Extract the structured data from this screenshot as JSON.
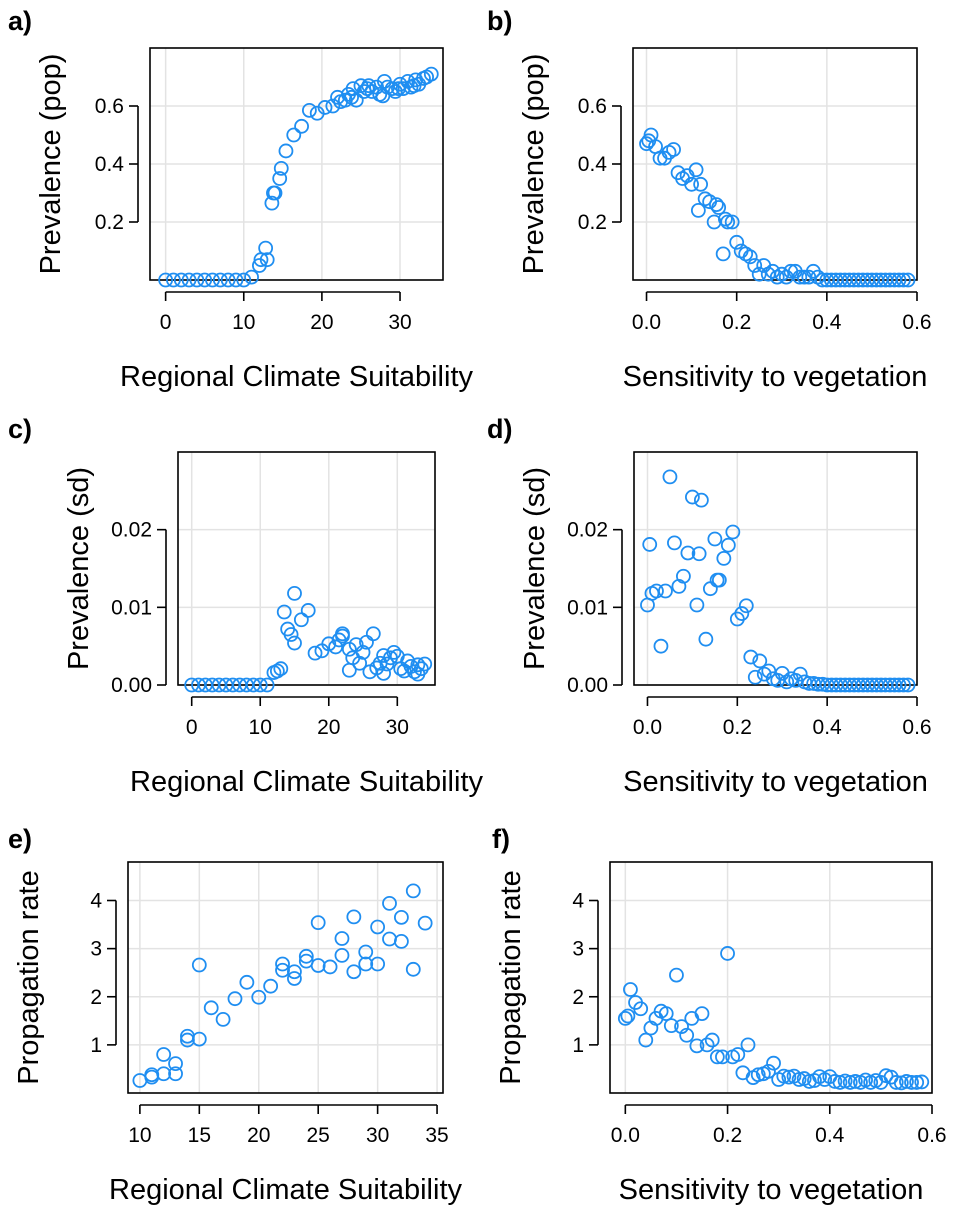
{
  "style": {
    "point_color": "#1f8ef1",
    "grid_color": "#e3e3e3",
    "axis_color": "#000000"
  },
  "chart_data": [
    {
      "type": "scatter",
      "panel_label": "a)",
      "xlabel": "Regional Climate Suitability",
      "ylabel": "Prevalence (pop)",
      "xlim": [
        -2,
        35.5
      ],
      "ylim": [
        0,
        0.8
      ],
      "xticks": [
        0,
        10,
        20,
        30
      ],
      "yticks": [
        0.2,
        0.4,
        0.6
      ],
      "ytick_labels": [
        "0.2",
        "0.4",
        "0.6"
      ],
      "grid": true,
      "x": [
        0,
        1,
        2,
        3,
        4,
        5,
        6,
        7,
        8,
        9,
        10,
        11,
        12,
        12.2,
        12.8,
        13,
        13.6,
        13.8,
        14,
        14.6,
        14.8,
        15.4,
        16.4,
        17.4,
        18.4,
        19.4,
        20.4,
        21.4,
        22,
        22.4,
        23,
        23.4,
        23.8,
        24,
        24.4,
        25,
        25.4,
        25.8,
        26,
        26.4,
        27,
        27.4,
        27.8,
        28,
        28.4,
        29,
        29.4,
        29.8,
        30,
        30.4,
        31,
        31.4,
        31.8,
        32,
        32.4,
        33,
        33.4,
        34
      ],
      "y": [
        0,
        0,
        0,
        0,
        0,
        0,
        0,
        0,
        0,
        0,
        0,
        0.01,
        0.05,
        0.07,
        0.11,
        0.07,
        0.265,
        0.3,
        0.3,
        0.35,
        0.385,
        0.445,
        0.5,
        0.53,
        0.585,
        0.575,
        0.595,
        0.6,
        0.63,
        0.615,
        0.62,
        0.64,
        0.63,
        0.66,
        0.62,
        0.67,
        0.65,
        0.66,
        0.67,
        0.65,
        0.665,
        0.64,
        0.635,
        0.685,
        0.665,
        0.66,
        0.65,
        0.66,
        0.675,
        0.66,
        0.685,
        0.665,
        0.67,
        0.69,
        0.675,
        0.695,
        0.7,
        0.71
      ]
    },
    {
      "type": "scatter",
      "panel_label": "b)",
      "xlabel": "Sensitivity to vegetation",
      "ylabel": "Prevalence (pop)",
      "xlim": [
        -0.03,
        0.6
      ],
      "ylim": [
        0,
        0.8
      ],
      "xticks": [
        0,
        0.2,
        0.4,
        0.6
      ],
      "xtick_labels": [
        "0.0",
        "0.2",
        "0.4",
        "0.6"
      ],
      "yticks": [
        0.2,
        0.4,
        0.6
      ],
      "ytick_labels": [
        "0.2",
        "0.4",
        "0.6"
      ],
      "grid": true,
      "x": [
        0,
        0.005,
        0.01,
        0.02,
        0.03,
        0.04,
        0.05,
        0.06,
        0.07,
        0.08,
        0.09,
        0.1,
        0.11,
        0.115,
        0.12,
        0.13,
        0.14,
        0.15,
        0.155,
        0.16,
        0.17,
        0.175,
        0.18,
        0.19,
        0.2,
        0.21,
        0.22,
        0.23,
        0.24,
        0.25,
        0.26,
        0.27,
        0.28,
        0.29,
        0.3,
        0.31,
        0.32,
        0.33,
        0.34,
        0.35,
        0.36,
        0.37,
        0.38,
        0.39,
        0.4,
        0.41,
        0.42,
        0.43,
        0.44,
        0.45,
        0.46,
        0.47,
        0.48,
        0.49,
        0.5,
        0.51,
        0.52,
        0.53,
        0.54,
        0.55,
        0.56,
        0.57,
        0.58
      ],
      "y": [
        0.47,
        0.48,
        0.5,
        0.46,
        0.42,
        0.42,
        0.44,
        0.45,
        0.37,
        0.35,
        0.36,
        0.33,
        0.38,
        0.24,
        0.33,
        0.28,
        0.27,
        0.2,
        0.26,
        0.25,
        0.09,
        0.21,
        0.2,
        0.2,
        0.13,
        0.1,
        0.09,
        0.08,
        0.05,
        0.02,
        0.05,
        0.02,
        0.03,
        0.01,
        0.02,
        0.01,
        0.03,
        0.03,
        0.01,
        0.01,
        0.01,
        0.03,
        0.01,
        0,
        0,
        0,
        0,
        0,
        0,
        0,
        0,
        0,
        0,
        0,
        0,
        0,
        0,
        0,
        0,
        0,
        0,
        0,
        0
      ]
    },
    {
      "type": "scatter",
      "panel_label": "c)",
      "xlabel": "Regional Climate Suitability",
      "ylabel": "Prevalence (sd)",
      "xlim": [
        -2,
        35.5
      ],
      "ylim": [
        0,
        0.03
      ],
      "xticks": [
        0,
        10,
        20,
        30
      ],
      "yticks": [
        0,
        0.01,
        0.02
      ],
      "ytick_labels": [
        "0.00",
        "0.01",
        "0.02"
      ],
      "grid": true,
      "x": [
        0,
        1,
        2,
        3,
        4,
        5,
        6,
        7,
        8,
        9,
        10,
        11,
        12,
        12.5,
        13,
        13.5,
        14,
        14.5,
        15,
        15,
        16,
        17,
        18,
        19,
        20,
        21,
        21.5,
        22,
        22,
        23,
        23,
        23.5,
        24,
        24.5,
        25,
        25.5,
        26,
        26.5,
        27,
        27.5,
        28,
        28,
        28.5,
        29,
        29.5,
        30,
        30.5,
        31,
        31.5,
        32,
        32.5,
        33,
        33,
        33.5,
        34
      ],
      "y": [
        0,
        0,
        0,
        0,
        0,
        0,
        0,
        0,
        0,
        0,
        0,
        0,
        0.0016,
        0.0018,
        0.0021,
        0.0094,
        0.0072,
        0.0065,
        0.0118,
        0.0054,
        0.0084,
        0.0096,
        0.0041,
        0.0044,
        0.0053,
        0.0049,
        0.0058,
        0.0063,
        0.0066,
        0.0046,
        0.0019,
        0.0035,
        0.0052,
        0.0028,
        0.0042,
        0.0055,
        0.0017,
        0.0066,
        0.0022,
        0.0028,
        0.0015,
        0.0038,
        0.0027,
        0.0035,
        0.0042,
        0.0037,
        0.0021,
        0.0018,
        0.0031,
        0.0024,
        0.0017,
        0.0026,
        0.0014,
        0.0021,
        0.0027
      ]
    },
    {
      "type": "scatter",
      "panel_label": "d)",
      "xlabel": "Sensitivity to vegetation",
      "ylabel": "Prevalence (sd)",
      "xlim": [
        -0.03,
        0.6
      ],
      "ylim": [
        0,
        0.03
      ],
      "xticks": [
        0,
        0.2,
        0.4,
        0.6
      ],
      "xtick_labels": [
        "0.0",
        "0.2",
        "0.4",
        "0.6"
      ],
      "yticks": [
        0,
        0.01,
        0.02
      ],
      "ytick_labels": [
        "0.00",
        "0.01",
        "0.02"
      ],
      "grid": true,
      "x": [
        0,
        0.005,
        0.01,
        0.02,
        0.03,
        0.04,
        0.05,
        0.06,
        0.07,
        0.08,
        0.09,
        0.1,
        0.11,
        0.115,
        0.12,
        0.13,
        0.14,
        0.15,
        0.155,
        0.16,
        0.17,
        0.18,
        0.19,
        0.2,
        0.21,
        0.22,
        0.23,
        0.24,
        0.25,
        0.26,
        0.27,
        0.28,
        0.29,
        0.3,
        0.31,
        0.32,
        0.33,
        0.34,
        0.35,
        0.36,
        0.37,
        0.38,
        0.39,
        0.4,
        0.41,
        0.42,
        0.43,
        0.44,
        0.45,
        0.46,
        0.47,
        0.48,
        0.49,
        0.5,
        0.51,
        0.52,
        0.53,
        0.54,
        0.55,
        0.56,
        0.57,
        0.58
      ],
      "y": [
        0.0103,
        0.0181,
        0.0118,
        0.0121,
        0.005,
        0.0121,
        0.0268,
        0.0183,
        0.0127,
        0.014,
        0.017,
        0.0242,
        0.0103,
        0.0169,
        0.0238,
        0.0059,
        0.0124,
        0.0188,
        0.0135,
        0.0135,
        0.0163,
        0.018,
        0.0197,
        0.0085,
        0.0092,
        0.0102,
        0.0036,
        0.001,
        0.0031,
        0.0014,
        0.0018,
        0.0008,
        0.0006,
        0.0015,
        0.0004,
        0.0008,
        0.0006,
        0.0014,
        0.0004,
        0.0002,
        0.0002,
        0.0001,
        0.0001,
        0,
        0,
        0,
        0,
        0,
        0,
        0,
        0,
        0,
        0,
        0,
        0,
        0,
        0,
        0,
        0,
        0,
        0,
        0
      ]
    },
    {
      "type": "scatter",
      "panel_label": "e)",
      "xlabel": "Regional Climate Suitability",
      "ylabel": "Propagation rate",
      "xlim": [
        9,
        35.5
      ],
      "ylim": [
        0,
        4.8
      ],
      "xticks": [
        10,
        15,
        20,
        25,
        30,
        35
      ],
      "yticks": [
        1,
        2,
        3,
        4
      ],
      "grid": true,
      "x": [
        10,
        11,
        11,
        12,
        12,
        13,
        13,
        14,
        14,
        15,
        15,
        16,
        17,
        18,
        19,
        20,
        21,
        22,
        22,
        23,
        23,
        24,
        24,
        25,
        25,
        26,
        27,
        27,
        28,
        28,
        29,
        29,
        30,
        30,
        31,
        31,
        32,
        32,
        33,
        33,
        34
      ],
      "y": [
        0.26,
        0.33,
        0.38,
        0.8,
        0.4,
        0.4,
        0.61,
        1.1,
        1.18,
        1.12,
        2.66,
        1.77,
        1.53,
        1.96,
        2.3,
        1.99,
        2.22,
        2.68,
        2.55,
        2.38,
        2.52,
        2.74,
        2.84,
        3.54,
        2.65,
        2.62,
        2.86,
        3.21,
        2.52,
        3.66,
        2.93,
        2.68,
        3.45,
        2.68,
        3.94,
        3.2,
        3.65,
        3.15,
        2.57,
        4.2,
        3.53
      ]
    },
    {
      "type": "scatter",
      "panel_label": "f)",
      "xlabel": "Sensitivity to vegetation",
      "ylabel": "Propagation rate",
      "xlim": [
        -0.03,
        0.6
      ],
      "ylim": [
        0,
        4.8
      ],
      "xticks": [
        0,
        0.2,
        0.4,
        0.6
      ],
      "xtick_labels": [
        "0.0",
        "0.2",
        "0.4",
        "0.6"
      ],
      "yticks": [
        1,
        2,
        3,
        4
      ],
      "grid": true,
      "x": [
        0,
        0.005,
        0.01,
        0.02,
        0.03,
        0.04,
        0.05,
        0.06,
        0.07,
        0.08,
        0.09,
        0.1,
        0.11,
        0.12,
        0.13,
        0.14,
        0.15,
        0.16,
        0.17,
        0.18,
        0.19,
        0.2,
        0.21,
        0.22,
        0.23,
        0.24,
        0.25,
        0.26,
        0.27,
        0.28,
        0.29,
        0.3,
        0.31,
        0.32,
        0.33,
        0.34,
        0.35,
        0.36,
        0.37,
        0.38,
        0.39,
        0.4,
        0.41,
        0.42,
        0.43,
        0.44,
        0.45,
        0.46,
        0.47,
        0.48,
        0.49,
        0.5,
        0.51,
        0.52,
        0.53,
        0.54,
        0.55,
        0.56,
        0.57,
        0.58
      ],
      "y": [
        1.55,
        1.6,
        2.15,
        1.88,
        1.75,
        1.1,
        1.35,
        1.55,
        1.7,
        1.65,
        1.4,
        2.45,
        1.38,
        1.2,
        1.55,
        0.98,
        1.65,
        1.0,
        1.1,
        0.75,
        0.75,
        2.9,
        0.75,
        0.8,
        0.42,
        1.0,
        0.32,
        0.38,
        0.4,
        0.45,
        0.62,
        0.28,
        0.35,
        0.33,
        0.35,
        0.28,
        0.3,
        0.24,
        0.26,
        0.34,
        0.28,
        0.34,
        0.24,
        0.22,
        0.25,
        0.22,
        0.24,
        0.22,
        0.27,
        0.22,
        0.26,
        0.22,
        0.36,
        0.33,
        0.22,
        0.21,
        0.24,
        0.22,
        0.22,
        0.23
      ]
    }
  ]
}
